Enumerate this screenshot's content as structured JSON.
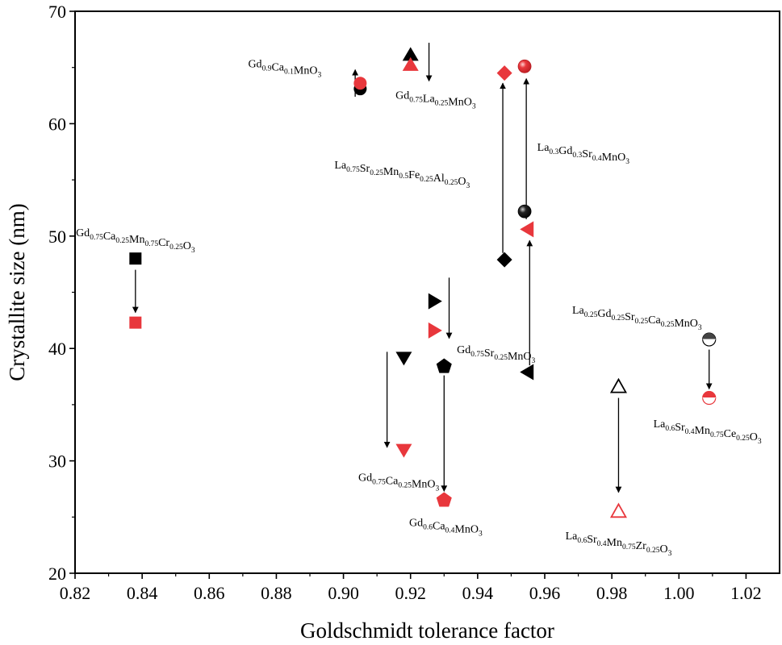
{
  "chart_data": {
    "type": "scatter",
    "xlabel": "Goldschmidt tolerance factor",
    "ylabel": "Crystallite size (nm)",
    "xlim": [
      0.82,
      1.03
    ],
    "ylim": [
      20,
      70
    ],
    "xticks": [
      "0.82",
      "0.84",
      "0.86",
      "0.88",
      "0.90",
      "0.92",
      "0.94",
      "0.96",
      "0.98",
      "1.00",
      "1.02"
    ],
    "yticks": [
      "20",
      "30",
      "40",
      "50",
      "60",
      "70"
    ],
    "colors": {
      "before": "#000000",
      "after": "#e8373c",
      "arrow": "#000000"
    },
    "compounds": [
      {
        "x": 0.838,
        "marker": "square",
        "before": 48.0,
        "after": 42.3,
        "label": [
          [
            "Gd",
            ""
          ],
          [
            "0.75",
            "sub"
          ],
          [
            "Ca",
            ""
          ],
          [
            "0.25",
            "sub"
          ],
          [
            "Mn",
            ""
          ],
          [
            "0.75",
            "sub"
          ],
          [
            "Cr",
            ""
          ],
          [
            "0.25",
            "sub"
          ],
          [
            "O",
            ""
          ],
          [
            "3",
            "sub"
          ]
        ],
        "label_pos": [
          0.838,
          50.0
        ],
        "arrow": [
          0.838,
          47.0,
          0.838,
          43.2
        ]
      },
      {
        "x": 0.905,
        "marker": "circle",
        "before": 63.1,
        "after": 63.6,
        "label": [
          [
            "Gd",
            ""
          ],
          [
            "0.9",
            "sub"
          ],
          [
            "Ca",
            ""
          ],
          [
            "0.1",
            "sub"
          ],
          [
            "MnO",
            ""
          ],
          [
            "3",
            "sub"
          ]
        ],
        "label_pos": [
          0.8825,
          65.0
        ],
        "arrow": [
          0.9035,
          62.4,
          0.9035,
          64.8
        ]
      },
      {
        "x": 0.92,
        "marker": "triangle-up",
        "before": 66.1,
        "after": 65.2,
        "label": [
          [
            "Gd",
            ""
          ],
          [
            "0.75",
            "sub"
          ],
          [
            "La",
            ""
          ],
          [
            "0.25",
            "sub"
          ],
          [
            "MnO",
            ""
          ],
          [
            "3",
            "sub"
          ]
        ],
        "label_pos": [
          0.9275,
          62.2
        ],
        "arrow": [
          0.9255,
          67.2,
          0.9255,
          63.8
        ]
      },
      {
        "x": 0.948,
        "marker": "diamond",
        "before": 47.9,
        "after": 64.5,
        "label": [
          [
            "La",
            ""
          ],
          [
            "0.75",
            "sub"
          ],
          [
            "Sr",
            ""
          ],
          [
            "0.25",
            "sub"
          ],
          [
            "Mn",
            ""
          ],
          [
            "0.5",
            "sub"
          ],
          [
            "Fe",
            ""
          ],
          [
            "0.25",
            "sub"
          ],
          [
            "Al",
            ""
          ],
          [
            "0.25",
            "sub"
          ],
          [
            "O",
            ""
          ],
          [
            "3",
            "sub"
          ]
        ],
        "label_pos": [
          0.9175,
          56.0
        ],
        "arrow": [
          0.9475,
          48.5,
          0.9475,
          63.6
        ]
      },
      {
        "x": 0.954,
        "marker": "sphere",
        "before": 52.2,
        "after": 65.1,
        "label": [
          [
            "La",
            ""
          ],
          [
            "0.3",
            "sub"
          ],
          [
            "Gd",
            ""
          ],
          [
            "0.3",
            "sub"
          ],
          [
            "Sr",
            ""
          ],
          [
            "0.4",
            "sub"
          ],
          [
            "MnO",
            ""
          ],
          [
            "3",
            "sub"
          ]
        ],
        "label_pos": [
          0.9715,
          57.6
        ],
        "arrow": [
          0.9545,
          51.5,
          0.9545,
          64.0
        ]
      },
      {
        "x": 0.955,
        "marker": "triangle-left",
        "before": 37.9,
        "after": 50.6,
        "label": [
          [
            "La",
            ""
          ],
          [
            "0.25",
            "sub"
          ],
          [
            "Gd",
            ""
          ],
          [
            "0.25",
            "sub"
          ],
          [
            "Sr",
            ""
          ],
          [
            "0.25",
            "sub"
          ],
          [
            "Ca",
            ""
          ],
          [
            "0.25",
            "sub"
          ],
          [
            "MnO",
            ""
          ],
          [
            "3",
            "sub"
          ]
        ],
        "label_pos": [
          0.9875,
          43.1
        ],
        "arrow": [
          0.9555,
          38.5,
          0.9555,
          49.6
        ]
      },
      {
        "x": 0.927,
        "marker": "triangle-right",
        "before": 44.2,
        "after": 41.6,
        "label": [
          [
            "Gd",
            ""
          ],
          [
            "0.75",
            "sub"
          ],
          [
            "Sr",
            ""
          ],
          [
            "0.25",
            "sub"
          ],
          [
            "MnO",
            ""
          ],
          [
            "3",
            "sub"
          ]
        ],
        "label_pos": [
          0.9455,
          39.6
        ],
        "arrow": [
          0.9315,
          46.3,
          0.9315,
          40.9
        ]
      },
      {
        "x": 0.918,
        "marker": "triangle-down",
        "before": 39.2,
        "after": 31.0,
        "label": [
          [
            "Gd",
            ""
          ],
          [
            "0.75",
            "sub"
          ],
          [
            "Ca",
            ""
          ],
          [
            "0.25",
            "sub"
          ],
          [
            "MnO",
            ""
          ],
          [
            "3",
            "sub"
          ]
        ],
        "label_pos": [
          0.9165,
          28.2
        ],
        "arrow": [
          0.913,
          39.7,
          0.913,
          31.2
        ]
      },
      {
        "x": 0.93,
        "marker": "pentagon",
        "before": 38.4,
        "after": 26.5,
        "label": [
          [
            "Gd",
            ""
          ],
          [
            "0.6",
            "sub"
          ],
          [
            "Ca",
            ""
          ],
          [
            "0.4",
            "sub"
          ],
          [
            "MnO",
            ""
          ],
          [
            "3",
            "sub"
          ]
        ],
        "label_pos": [
          0.9305,
          24.2
        ],
        "arrow": [
          0.93,
          37.6,
          0.93,
          27.3
        ]
      },
      {
        "x": 0.982,
        "marker": "open-triangle",
        "before": 36.6,
        "after": 25.5,
        "label": [
          [
            "La",
            ""
          ],
          [
            "0.6",
            "sub"
          ],
          [
            "Sr",
            ""
          ],
          [
            "0.4",
            "sub"
          ],
          [
            "Mn",
            ""
          ],
          [
            "0.75",
            "sub"
          ],
          [
            "Zr",
            ""
          ],
          [
            "0.25",
            "sub"
          ],
          [
            "O",
            ""
          ],
          [
            "3",
            "sub"
          ]
        ],
        "label_pos": [
          0.982,
          23.0
        ],
        "arrow": [
          0.982,
          35.6,
          0.982,
          27.2
        ]
      },
      {
        "x": 1.009,
        "marker": "half-circle",
        "before": 40.8,
        "after": 35.6,
        "label": [
          [
            "La",
            ""
          ],
          [
            "0.6",
            "sub"
          ],
          [
            "Sr",
            ""
          ],
          [
            "0.4",
            "sub"
          ],
          [
            "Mn",
            ""
          ],
          [
            "0.75",
            "sub"
          ],
          [
            "Ce",
            ""
          ],
          [
            "0.25",
            "sub"
          ],
          [
            "O",
            ""
          ],
          [
            "3",
            "sub"
          ]
        ],
        "label_pos": [
          1.0085,
          33.0
        ],
        "arrow": [
          1.009,
          39.9,
          1.009,
          36.4
        ]
      }
    ]
  }
}
